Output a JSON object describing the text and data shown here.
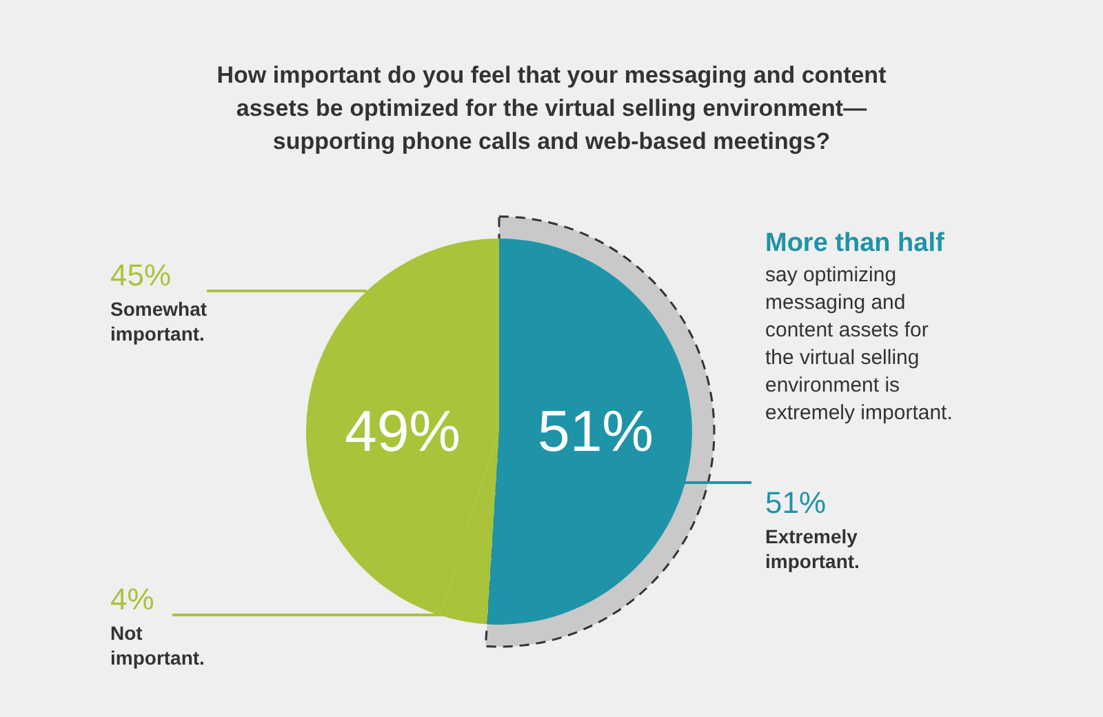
{
  "chart_data": {
    "type": "pie",
    "title": "How important do you feel that your messaging and content assets be optimized for the virtual selling environment—supporting phone calls and web-based meetings?",
    "categories": [
      "Extremely important.",
      "Not important.",
      "Somewhat important."
    ],
    "values": [
      51,
      4,
      45
    ],
    "colors": [
      "#1f93a7",
      "#a9c33b",
      "#a9c33b"
    ],
    "value_labels": [
      "51%",
      "4%",
      "45%"
    ],
    "annotations": [
      "49%",
      "51%",
      "More than half",
      "say optimizing messaging and content assets for the virtual selling environment is extremely important."
    ]
  }
}
